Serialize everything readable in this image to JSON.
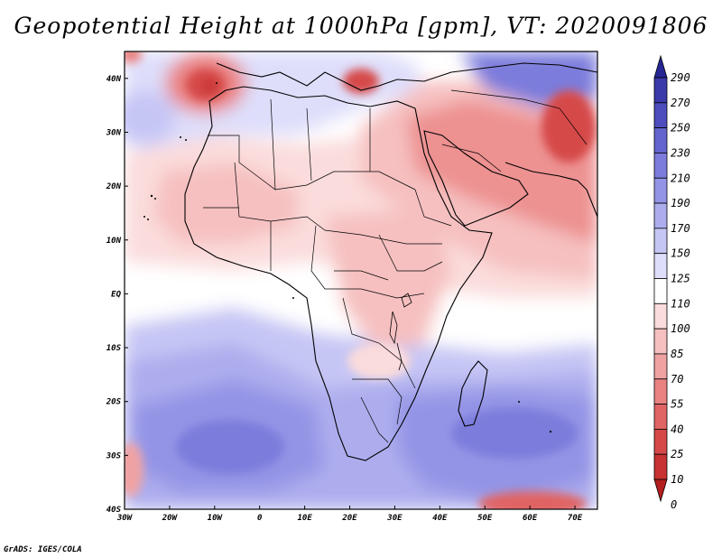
{
  "title": "Geopotential Height at 1000hPa [gpm], VT: 2020091806",
  "credit": "GrADS: IGES/COLA",
  "map": {
    "lon_range": [
      -30,
      75
    ],
    "lat_range": [
      -40,
      45
    ],
    "lon_ticks": [
      {
        "value": -30,
        "label": "30W"
      },
      {
        "value": -20,
        "label": "20W"
      },
      {
        "value": -10,
        "label": "10W"
      },
      {
        "value": 0,
        "label": "0"
      },
      {
        "value": 10,
        "label": "10E"
      },
      {
        "value": 20,
        "label": "20E"
      },
      {
        "value": 30,
        "label": "30E"
      },
      {
        "value": 40,
        "label": "40E"
      },
      {
        "value": 50,
        "label": "50E"
      },
      {
        "value": 60,
        "label": "60E"
      },
      {
        "value": 70,
        "label": "70E"
      }
    ],
    "lat_ticks": [
      {
        "value": 40,
        "label": "40N"
      },
      {
        "value": 30,
        "label": "30N"
      },
      {
        "value": 20,
        "label": "20N"
      },
      {
        "value": 10,
        "label": "10N"
      },
      {
        "value": 0,
        "label": "EQ"
      },
      {
        "value": -10,
        "label": "10S"
      },
      {
        "value": -20,
        "label": "20S"
      },
      {
        "value": -30,
        "label": "30S"
      },
      {
        "value": -40,
        "label": "40S"
      }
    ]
  },
  "colorbar": {
    "levels_top_to_bottom": [
      "290",
      "270",
      "250",
      "230",
      "210",
      "190",
      "170",
      "150",
      "125",
      "110",
      "100",
      "85",
      "70",
      "55",
      "40",
      "25",
      "10",
      "0"
    ],
    "colors_top_to_bottom": [
      "#262694",
      "#3a3aaa",
      "#4d4dbe",
      "#6464cf",
      "#7c7cdc",
      "#9494e6",
      "#adadee",
      "#c6c6f5",
      "#dedefb",
      "#ffffff",
      "#fbdcdc",
      "#f6c0c0",
      "#f0a2a2",
      "#ea8282",
      "#e06464",
      "#d64848",
      "#c83232",
      "#b41e1e"
    ]
  },
  "regions": [
    {
      "name": "background-field",
      "value_range": "110-125"
    },
    {
      "name": "southern-high-west",
      "value_range": "210-230"
    },
    {
      "name": "southern-high-east",
      "value_range": "210-230"
    },
    {
      "name": "arabian-low",
      "value_range": "55-100"
    },
    {
      "name": "iberian-low",
      "value_range": "25-70"
    },
    {
      "name": "southern-ocean-low",
      "value_range": "25-70"
    }
  ]
}
